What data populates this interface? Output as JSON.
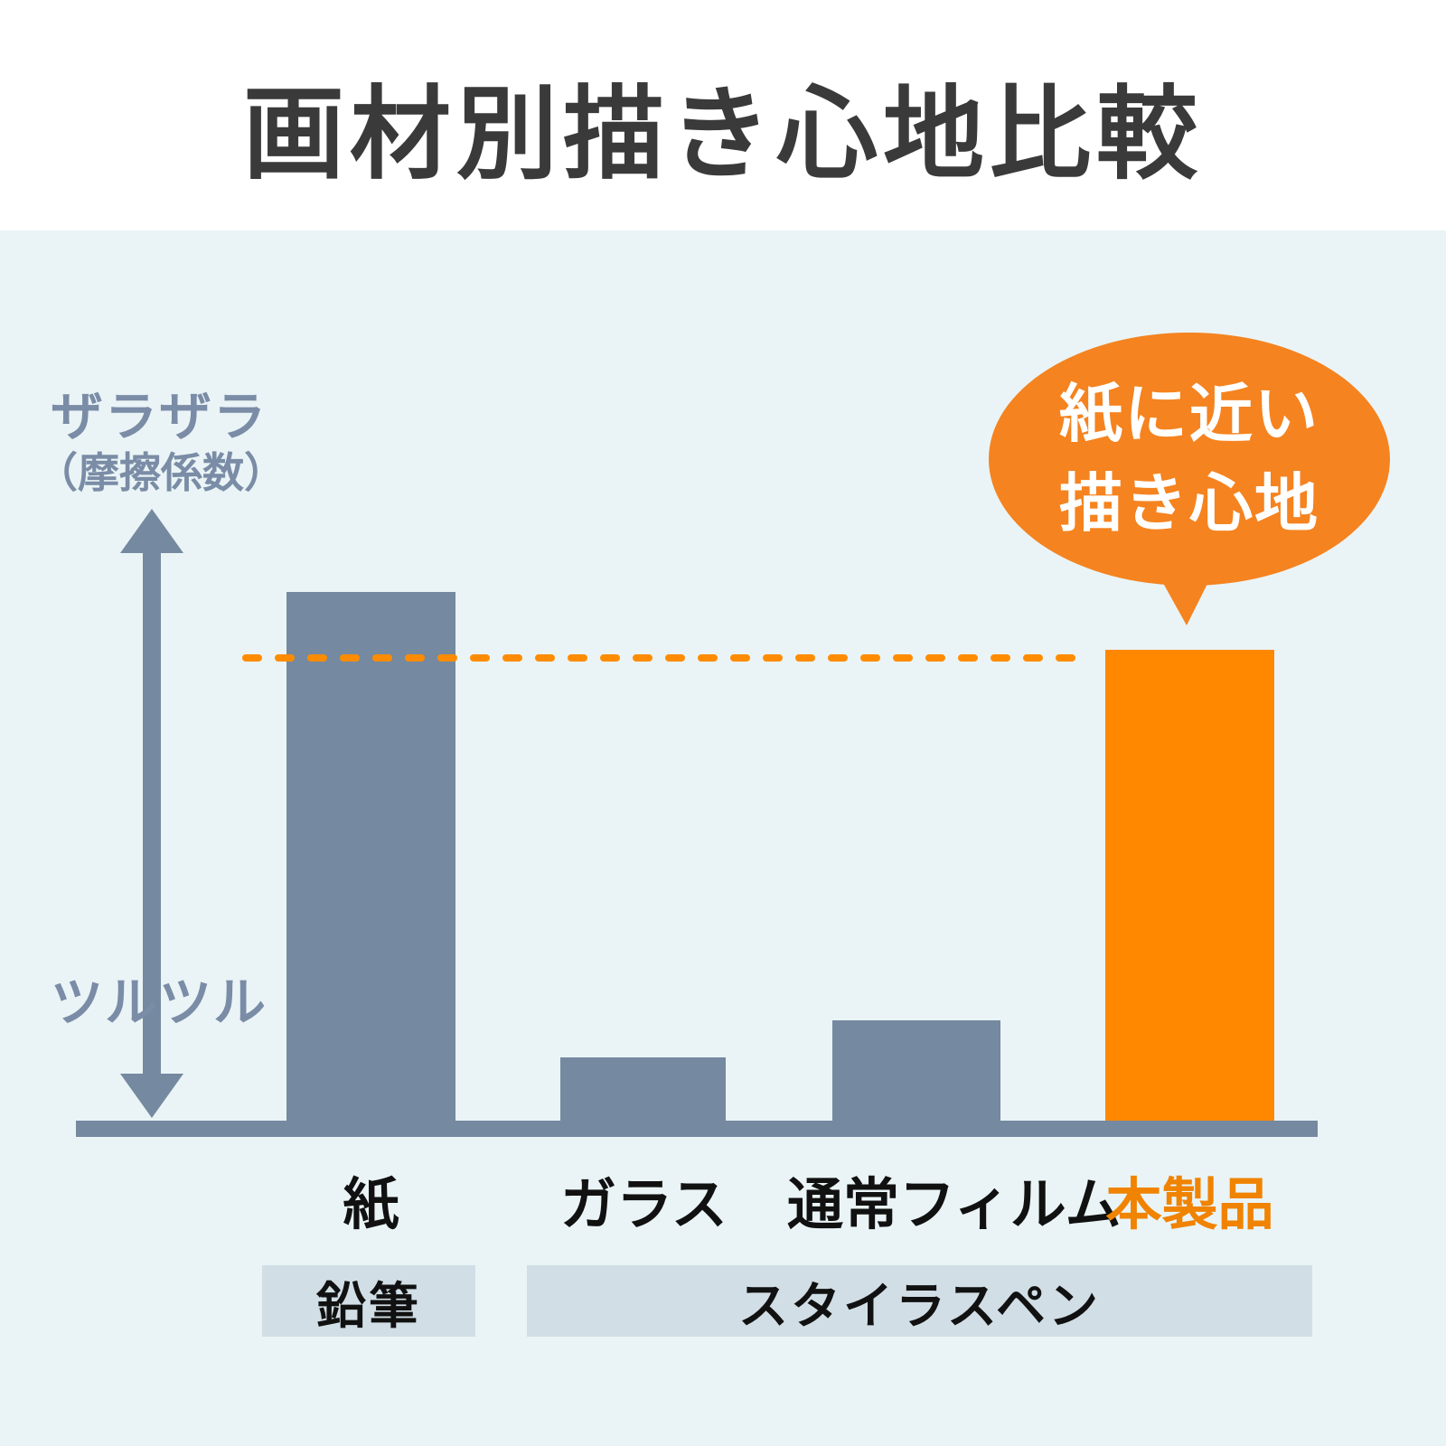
{
  "title": "画材別描き心地比較",
  "y_axis": {
    "rough_label": "ザラザラ",
    "rough_sublabel": "（摩擦係数）",
    "smooth_label": "ツルツル"
  },
  "callout": {
    "line1": "紙に近い",
    "line2": "描き心地"
  },
  "groups": [
    {
      "label": "鉛筆"
    },
    {
      "label": "スタイラスペン"
    }
  ],
  "colors": {
    "chart_background": "#eaf4f6",
    "bar_gray": "#7589a0",
    "bar_orange": "#ff8800",
    "dashed_line_orange": "#ff8c00",
    "bubble_orange": "#f5831f",
    "product_label_orange": "#f08300",
    "axis_text_gray": "#7a8ca6",
    "band_background": "#d1dee5",
    "title_color": "#3a3a3a"
  },
  "chart_data": {
    "type": "bar",
    "title": "画材別描き心地比較",
    "categories": [
      "紙",
      "ガラス",
      "通常フィルム",
      "本製品"
    ],
    "values": [
      1.0,
      0.12,
      0.19,
      0.89
    ],
    "value_axis": "摩擦係数（相対値・目盛りなし）",
    "ylim": [
      0,
      1.05
    ],
    "yaxis_top_label": "ザラザラ（摩擦係数）",
    "yaxis_bottom_label": "ツルツル",
    "xlabel": "",
    "ylabel": "摩擦係数",
    "grid": false,
    "legend": false,
    "bar_colors": [
      "#7589a0",
      "#7589a0",
      "#7589a0",
      "#ff8800"
    ],
    "category_groups": [
      {
        "label": "鉛筆",
        "categories": [
          "紙"
        ]
      },
      {
        "label": "スタイラスペン",
        "categories": [
          "ガラス",
          "通常フィルム",
          "本製品"
        ]
      }
    ],
    "annotations": [
      {
        "type": "callout_bubble",
        "target": "本製品",
        "text": "紙に近い描き心地"
      },
      {
        "type": "dashed_reference_line",
        "y": 0.875,
        "color": "#ff8c00",
        "meaning": "本製品の描き心地が紙に近いことを示す基準線"
      }
    ]
  }
}
